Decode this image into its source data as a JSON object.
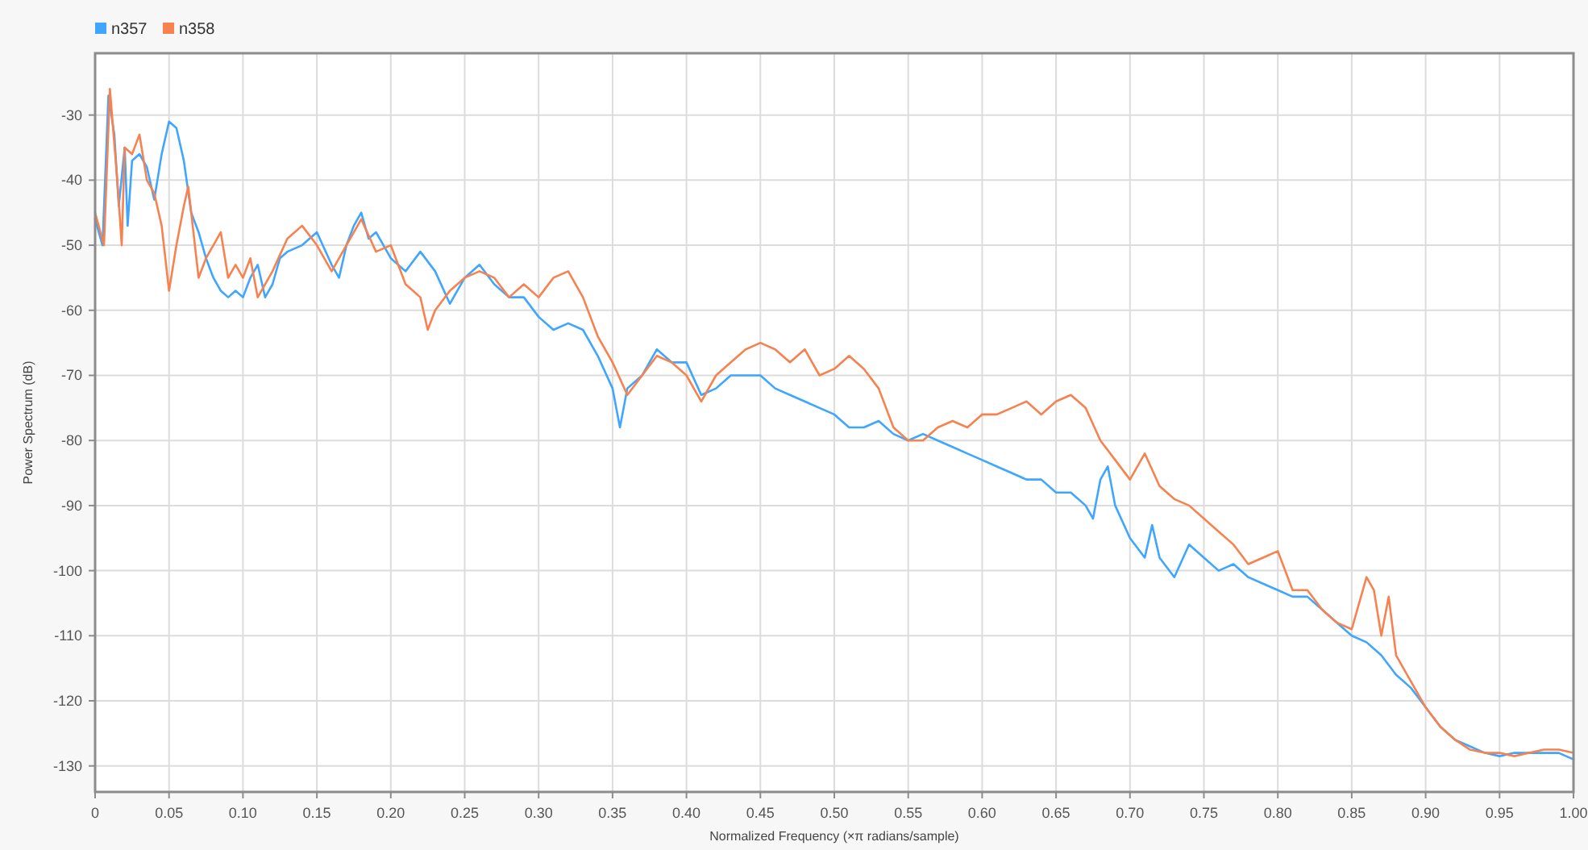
{
  "chart_data": {
    "type": "line",
    "xlabel": "Normalized Frequency (×π radians/sample)",
    "ylabel": "Power Spectrum (dB)",
    "xlim": [
      0,
      1
    ],
    "ylim": [
      -134,
      -20.5
    ],
    "xticks": [
      0,
      {
        "value": 0.05,
        "label": "0.05"
      },
      {
        "value": 0.1,
        "label": "0.10"
      },
      {
        "value": 0.15,
        "label": "0.15"
      },
      {
        "value": 0.2,
        "label": "0.20"
      },
      {
        "value": 0.25,
        "label": "0.25"
      },
      {
        "value": 0.3,
        "label": "0.30"
      },
      {
        "value": 0.35,
        "label": "0.35"
      },
      {
        "value": 0.4,
        "label": "0.40"
      },
      {
        "value": 0.45,
        "label": "0.45"
      },
      {
        "value": 0.5,
        "label": "0.50"
      },
      {
        "value": 0.55,
        "label": "0.55"
      },
      {
        "value": 0.6,
        "label": "0.60"
      },
      {
        "value": 0.65,
        "label": "0.65"
      },
      {
        "value": 0.7,
        "label": "0.70"
      },
      {
        "value": 0.75,
        "label": "0.75"
      },
      {
        "value": 0.8,
        "label": "0.80"
      },
      {
        "value": 0.85,
        "label": "0.85"
      },
      {
        "value": 0.9,
        "label": "0.90"
      },
      {
        "value": 0.95,
        "label": "0.95"
      },
      {
        "value": 1,
        "label": "1.00"
      }
    ],
    "yticks": [
      -30,
      -40,
      -50,
      -60,
      -70,
      -80,
      -90,
      -100,
      -110,
      -120,
      -130
    ],
    "grid": true,
    "legend": "top left",
    "line_style": "solid",
    "series": [
      {
        "name": "n357",
        "color": "#3ea6ff",
        "x": [
          0,
          0.005,
          0.009,
          0.013,
          0.016,
          0.02,
          0.022,
          0.025,
          0.03,
          0.035,
          0.04,
          0.045,
          0.05,
          0.055,
          0.06,
          0.065,
          0.07,
          0.075,
          0.08,
          0.085,
          0.09,
          0.095,
          0.1,
          0.105,
          0.11,
          0.115,
          0.12,
          0.125,
          0.13,
          0.14,
          0.15,
          0.16,
          0.165,
          0.17,
          0.175,
          0.18,
          0.185,
          0.19,
          0.2,
          0.21,
          0.22,
          0.23,
          0.24,
          0.25,
          0.26,
          0.27,
          0.28,
          0.29,
          0.3,
          0.31,
          0.32,
          0.33,
          0.34,
          0.35,
          0.355,
          0.36,
          0.37,
          0.38,
          0.39,
          0.4,
          0.41,
          0.42,
          0.43,
          0.44,
          0.45,
          0.46,
          0.47,
          0.48,
          0.49,
          0.5,
          0.51,
          0.52,
          0.53,
          0.54,
          0.55,
          0.56,
          0.57,
          0.58,
          0.59,
          0.6,
          0.61,
          0.62,
          0.63,
          0.64,
          0.65,
          0.66,
          0.67,
          0.675,
          0.68,
          0.685,
          0.69,
          0.7,
          0.71,
          0.715,
          0.72,
          0.73,
          0.74,
          0.75,
          0.76,
          0.77,
          0.78,
          0.79,
          0.8,
          0.81,
          0.82,
          0.83,
          0.84,
          0.85,
          0.86,
          0.87,
          0.88,
          0.89,
          0.9,
          0.91,
          0.92,
          0.93,
          0.94,
          0.95,
          0.96,
          0.97,
          0.98,
          0.99,
          1
        ],
        "values": [
          -46,
          -50,
          -27,
          -33,
          -44,
          -35,
          -47,
          -37,
          -36,
          -38,
          -43,
          -36,
          -31,
          -32,
          -37,
          -45,
          -48,
          -52,
          -55,
          -57,
          -58,
          -57,
          -58,
          -55,
          -53,
          -58,
          -56,
          -52,
          -51,
          -50,
          -48,
          -53,
          -55,
          -50,
          -47,
          -45,
          -49,
          -48,
          -52,
          -54,
          -51,
          -54,
          -59,
          -55,
          -53,
          -56,
          -58,
          -58,
          -61,
          -63,
          -62,
          -63,
          -67,
          -72,
          -78,
          -72,
          -70,
          -66,
          -68,
          -68,
          -73,
          -72,
          -70,
          -70,
          -70,
          -72,
          -73,
          -74,
          -75,
          -76,
          -78,
          -78,
          -77,
          -79,
          -80,
          -79,
          -80,
          -81,
          -82,
          -83,
          -84,
          -85,
          -86,
          -86,
          -88,
          -88,
          -90,
          -92,
          -86,
          -84,
          -90,
          -95,
          -98,
          -93,
          -98,
          -101,
          -96,
          -98,
          -100,
          -99,
          -101,
          -102,
          -103,
          -104,
          -104,
          -106,
          -108,
          -110,
          -111,
          -113,
          -116,
          -118,
          -121,
          -124,
          -126,
          -127,
          -128,
          -128.5,
          -128,
          -128,
          -128,
          -128,
          -129
        ]
      },
      {
        "name": "n358",
        "color": "#f7824f",
        "x": [
          0,
          0.006,
          0.01,
          0.015,
          0.018,
          0.02,
          0.025,
          0.03,
          0.035,
          0.04,
          0.045,
          0.05,
          0.055,
          0.06,
          0.063,
          0.07,
          0.075,
          0.08,
          0.085,
          0.09,
          0.095,
          0.1,
          0.105,
          0.11,
          0.12,
          0.13,
          0.14,
          0.15,
          0.16,
          0.17,
          0.18,
          0.19,
          0.2,
          0.21,
          0.22,
          0.225,
          0.23,
          0.24,
          0.25,
          0.26,
          0.27,
          0.28,
          0.29,
          0.3,
          0.31,
          0.32,
          0.33,
          0.34,
          0.35,
          0.36,
          0.37,
          0.38,
          0.39,
          0.4,
          0.41,
          0.42,
          0.43,
          0.44,
          0.45,
          0.46,
          0.47,
          0.48,
          0.49,
          0.5,
          0.51,
          0.52,
          0.53,
          0.54,
          0.55,
          0.56,
          0.57,
          0.58,
          0.59,
          0.6,
          0.61,
          0.62,
          0.63,
          0.64,
          0.65,
          0.66,
          0.67,
          0.68,
          0.69,
          0.7,
          0.71,
          0.72,
          0.73,
          0.74,
          0.75,
          0.76,
          0.77,
          0.78,
          0.79,
          0.8,
          0.81,
          0.82,
          0.83,
          0.84,
          0.85,
          0.86,
          0.865,
          0.87,
          0.875,
          0.88,
          0.89,
          0.9,
          0.91,
          0.92,
          0.93,
          0.94,
          0.95,
          0.96,
          0.97,
          0.98,
          0.99,
          1
        ],
        "values": [
          -45,
          -50,
          -26,
          -40,
          -50,
          -35,
          -36,
          -33,
          -40,
          -42,
          -47,
          -57,
          -50,
          -44,
          -41,
          -55,
          -52,
          -50,
          -48,
          -55,
          -53,
          -55,
          -52,
          -58,
          -54,
          -49,
          -47,
          -50,
          -54,
          -50,
          -46,
          -51,
          -50,
          -56,
          -58,
          -63,
          -60,
          -57,
          -55,
          -54,
          -55,
          -58,
          -56,
          -58,
          -55,
          -54,
          -58,
          -64,
          -68,
          -73,
          -70,
          -67,
          -68,
          -70,
          -74,
          -70,
          -68,
          -66,
          -65,
          -66,
          -68,
          -66,
          -70,
          -69,
          -67,
          -69,
          -72,
          -78,
          -80,
          -80,
          -78,
          -77,
          -78,
          -76,
          -76,
          -75,
          -74,
          -76,
          -74,
          -73,
          -75,
          -80,
          -83,
          -86,
          -82,
          -87,
          -89,
          -90,
          -92,
          -94,
          -96,
          -99,
          -98,
          -97,
          -103,
          -103,
          -106,
          -108,
          -109,
          -101,
          -103,
          -110,
          -104,
          -113,
          -117,
          -121,
          -124,
          -126,
          -127.5,
          -128,
          -128,
          -128.5,
          -128,
          -127.5,
          -127.5,
          -128
        ]
      }
    ]
  }
}
